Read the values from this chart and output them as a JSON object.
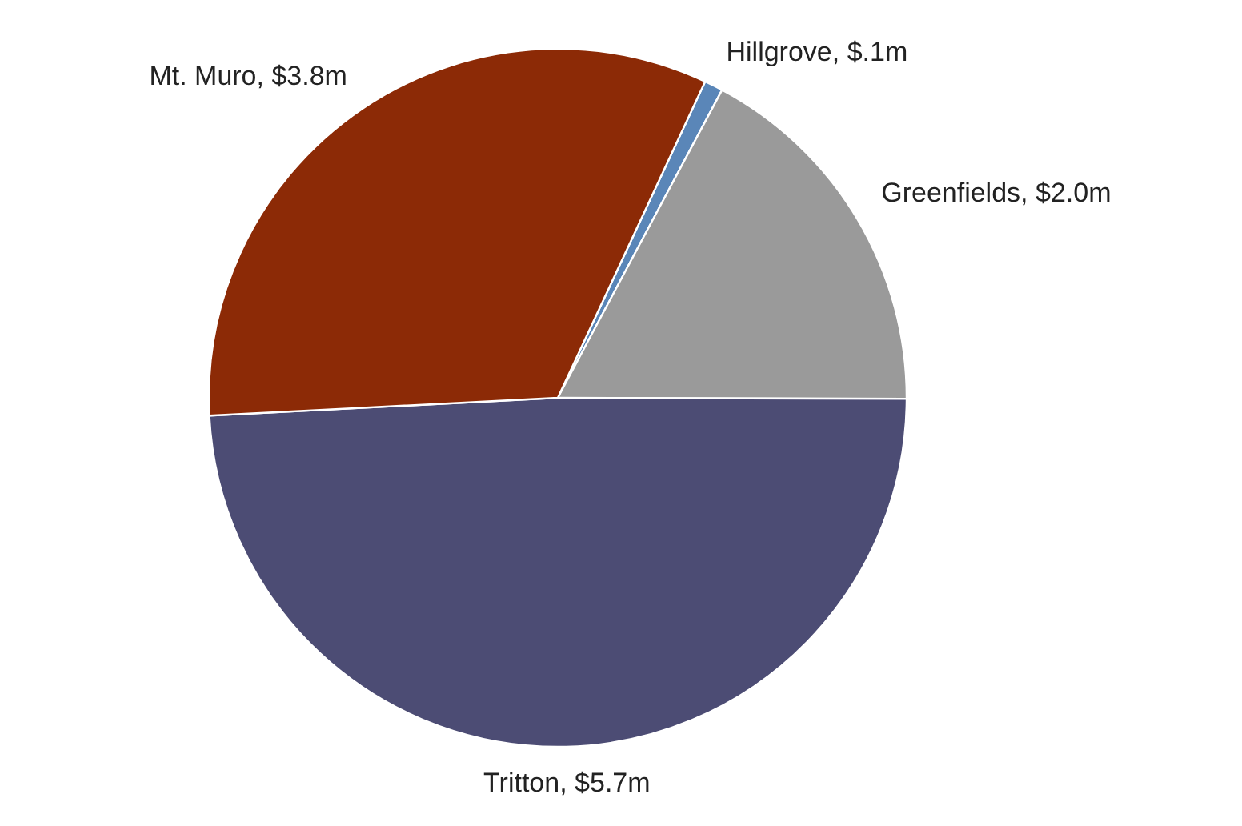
{
  "chart_data": {
    "type": "pie",
    "categories": [
      "Hillgrove",
      "Greenfields",
      "Tritton",
      "Mt. Muro"
    ],
    "values": [
      0.1,
      2.0,
      5.7,
      3.8
    ],
    "value_labels": [
      "$.1m",
      "$2.0m",
      "$5.7m",
      "$3.8m"
    ],
    "colors": [
      "#5a86b8",
      "#9a9a9a",
      "#4c4c74",
      "#8c2a06"
    ],
    "legend": false
  }
}
